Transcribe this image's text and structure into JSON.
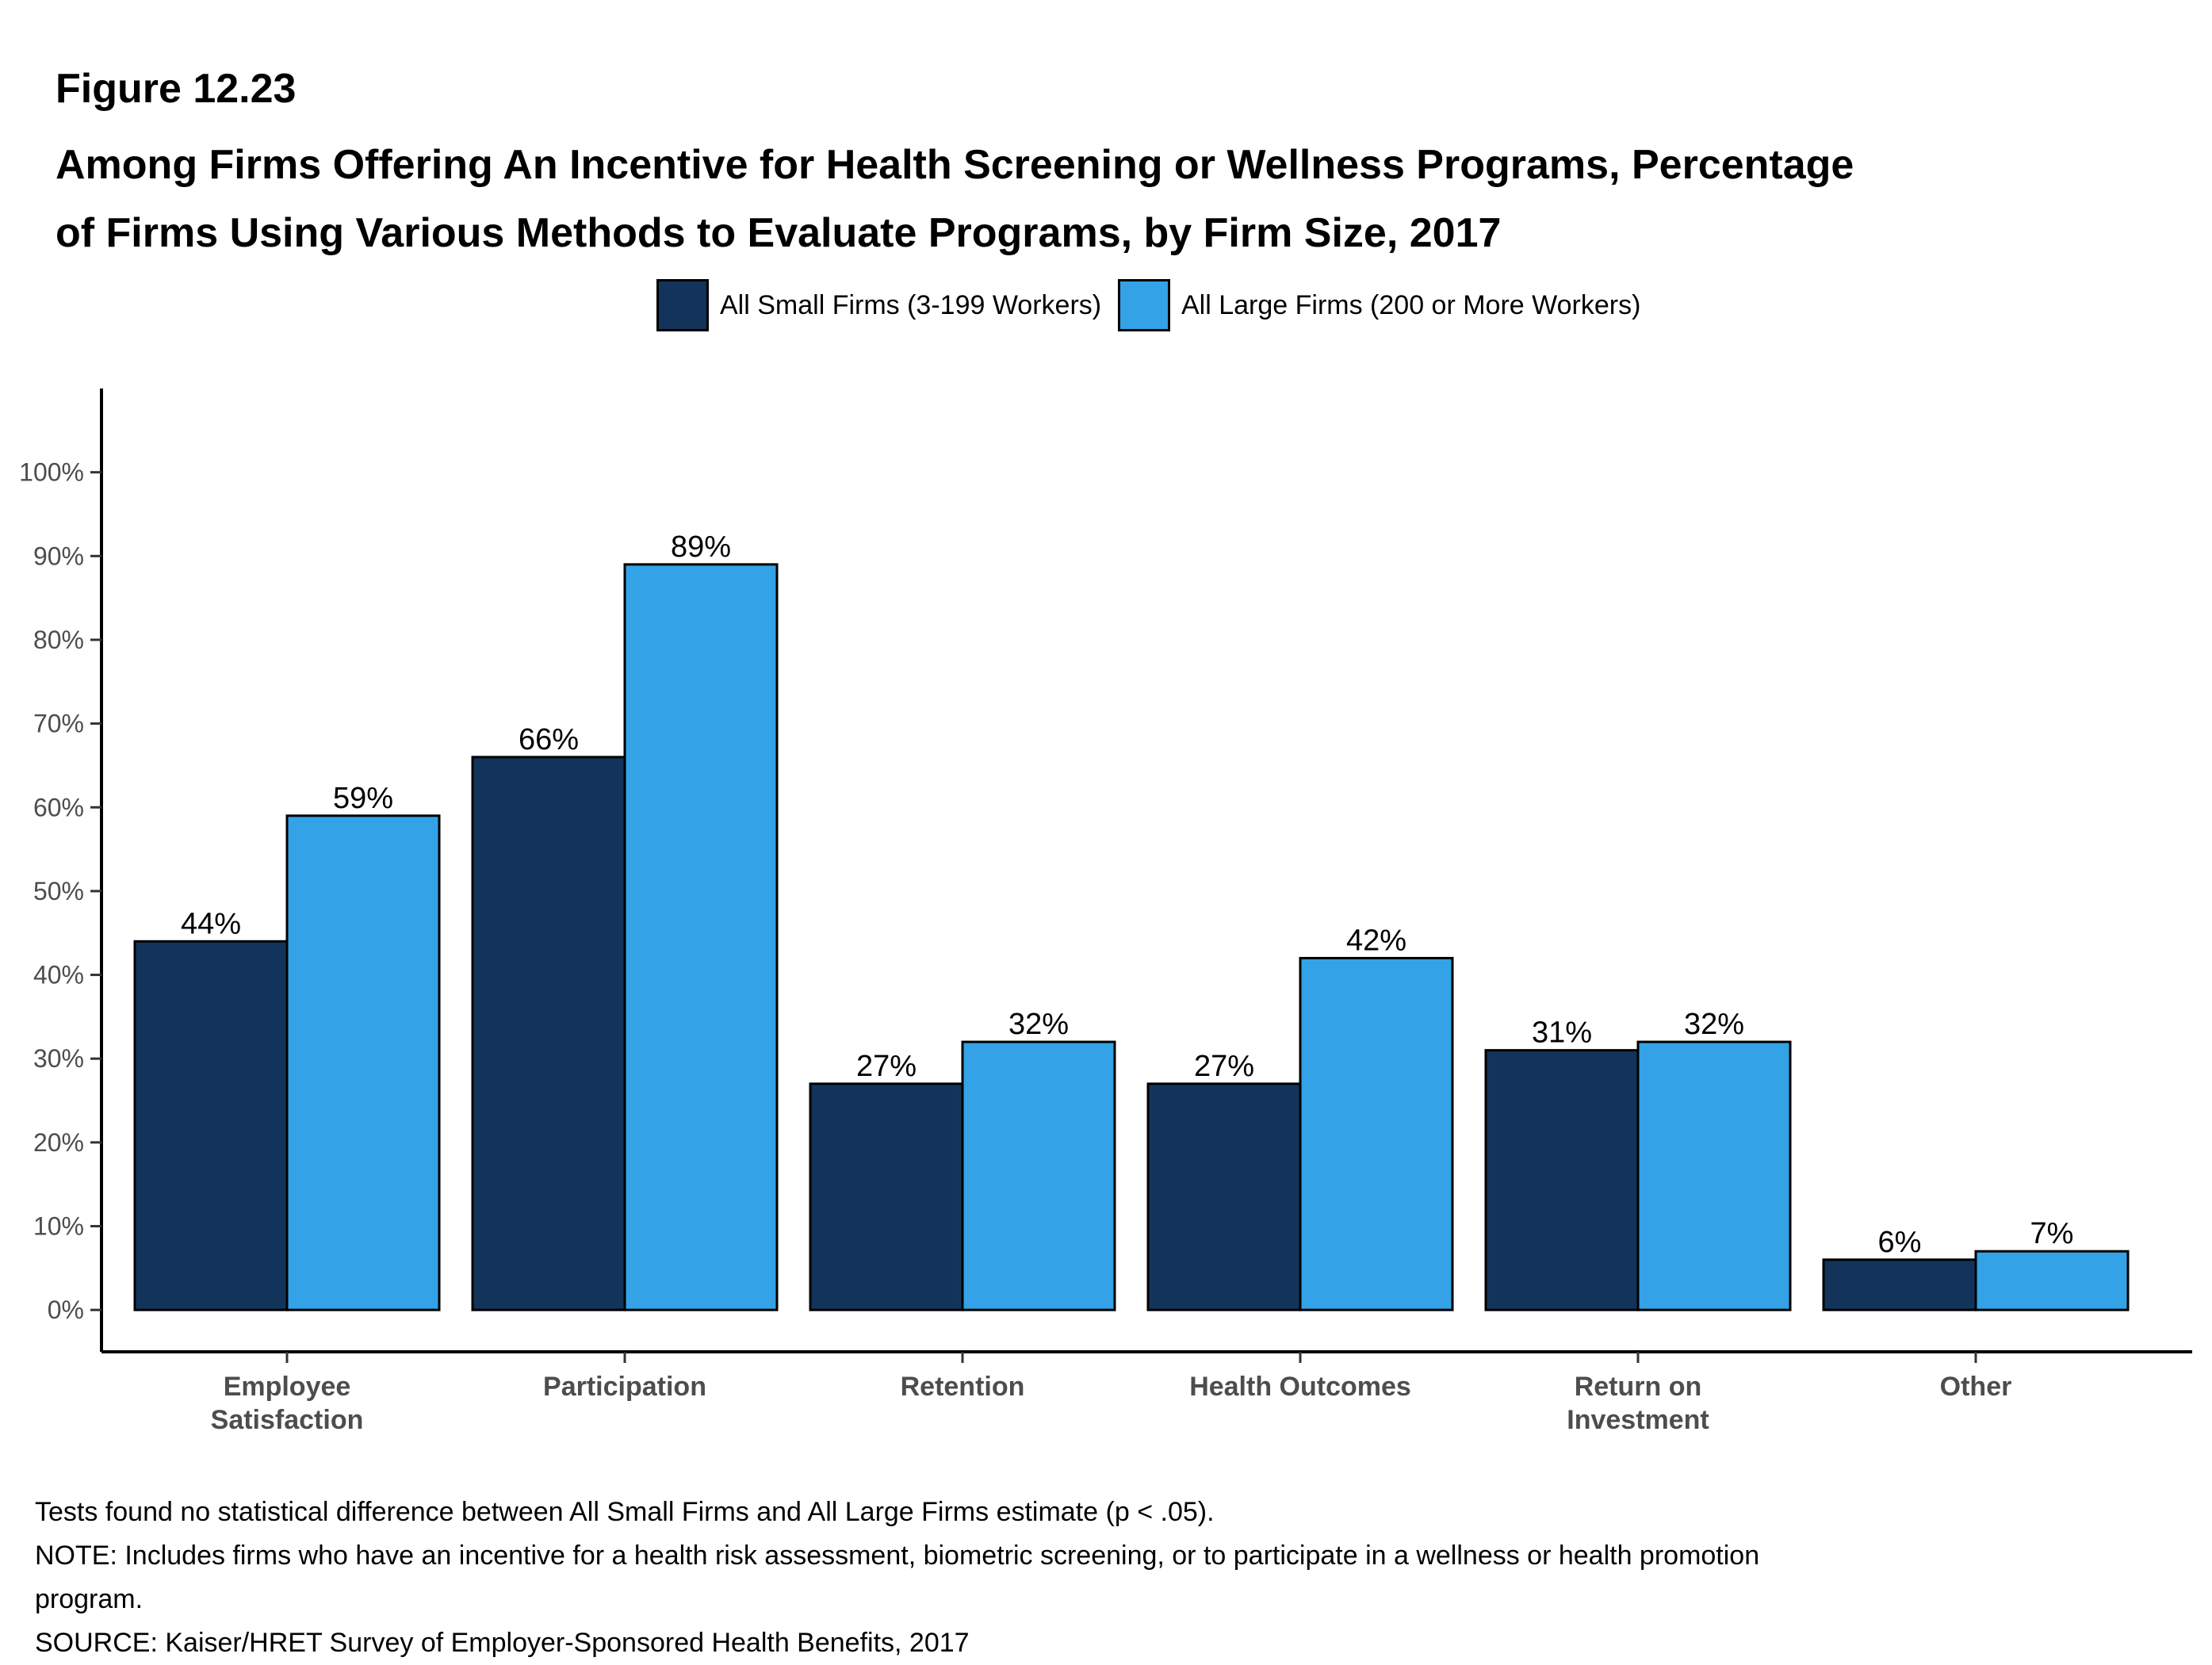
{
  "figure_label": "Figure 12.23",
  "title_line1": "Among Firms Offering An Incentive for Health Screening or Wellness Programs, Percentage",
  "title_line2": "of Firms Using Various Methods to Evaluate Programs, by Firm Size, 2017",
  "notes": [
    "Tests found no statistical difference between All Small Firms and All Large Firms estimate (p < .05).",
    "NOTE: Includes firms who have an incentive for a health risk assessment, biometric screening, or to participate in a wellness or health promotion",
    "program.",
    "SOURCE: Kaiser/HRET Survey of Employer-Sponsored Health Benefits, 2017"
  ],
  "chart_data": {
    "type": "bar",
    "title": "",
    "xlabel": "",
    "ylabel": "",
    "categories": [
      [
        "Employee",
        "Satisfaction"
      ],
      [
        "Participation"
      ],
      [
        "Retention"
      ],
      [
        "Health Outcomes"
      ],
      [
        "Return on",
        "Investment"
      ],
      [
        "Other"
      ]
    ],
    "series": [
      {
        "name": "All Small Firms (3-199 Workers)",
        "color": "#13345a",
        "values": [
          44,
          66,
          27,
          27,
          31,
          6
        ]
      },
      {
        "name": "All Large Firms (200 or More Workers)",
        "color": "#33a2e6",
        "values": [
          59,
          89,
          32,
          42,
          32,
          7
        ]
      }
    ],
    "value_suffix": "%",
    "ylim": [
      -5,
      110
    ],
    "yticks": [
      0,
      10,
      20,
      30,
      40,
      50,
      60,
      70,
      80,
      90,
      100
    ],
    "ytick_labels": [
      "0%",
      "10%",
      "20%",
      "30%",
      "40%",
      "50%",
      "60%",
      "70%",
      "80%",
      "90%",
      "100%"
    ],
    "grid": false,
    "legend_position": "top-center"
  }
}
